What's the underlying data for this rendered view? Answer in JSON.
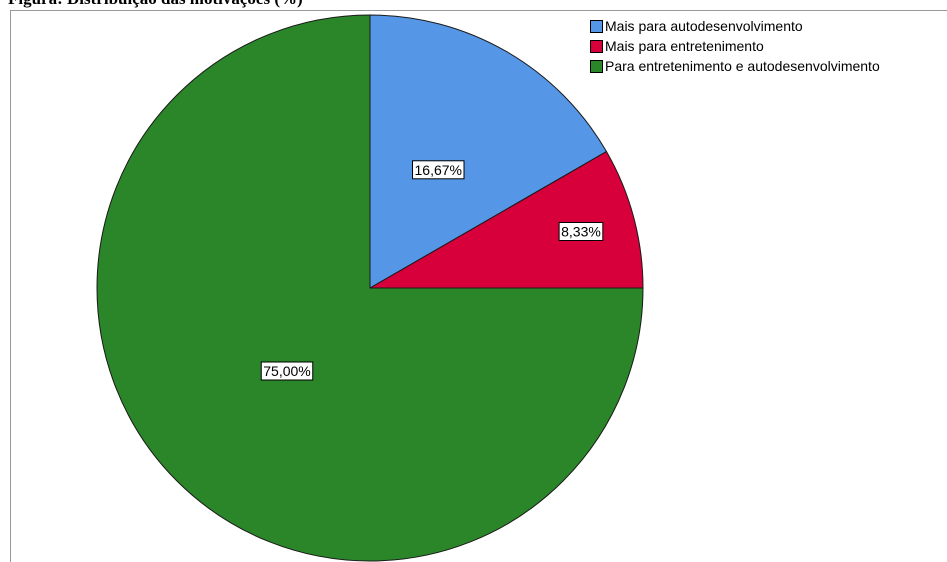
{
  "title_fragment": "Figura: Distribuição das motivações (%)",
  "chart_data": {
    "type": "pie",
    "title": "",
    "start_angle_deg": 0,
    "direction": "clockwise",
    "slices": [
      {
        "label": "Mais para autodesenvolvimento",
        "value": 16.67,
        "data_label": "16,67%",
        "color": "#5597e6"
      },
      {
        "label": "Mais para entretenimento",
        "value": 8.33,
        "data_label": "8,33%",
        "color": "#d7003a"
      },
      {
        "label": "Para entretenimento e autodesenvolvimento",
        "value": 75.0,
        "data_label": "75,00%",
        "color": "#2a8628"
      }
    ],
    "legend_position": "top-right"
  }
}
